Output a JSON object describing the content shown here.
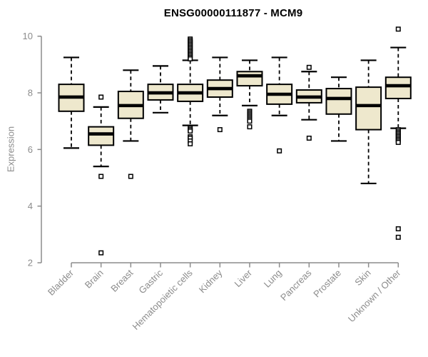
{
  "title": "ENSG00000111877 - MCM9",
  "chart_data": {
    "type": "boxplot",
    "title": "ENSG00000111877 - MCM9",
    "ylabel": "Expression",
    "xlabel": "",
    "ylim": [
      2,
      10
    ],
    "yticks": [
      2,
      4,
      6,
      8,
      10
    ],
    "grid": false,
    "legend": "none",
    "categories": [
      "Bladder",
      "Brain",
      "Breast",
      "Gastric",
      "Hematopoietic cells",
      "Kidney",
      "Liver",
      "Lung",
      "Pancreas",
      "Prostate",
      "Skin",
      "Unknown / Other"
    ],
    "series": [
      {
        "name": "Bladder",
        "low": 6.05,
        "q1": 7.35,
        "median": 7.85,
        "q3": 8.3,
        "high": 9.25,
        "outliers": []
      },
      {
        "name": "Brain",
        "low": 5.4,
        "q1": 6.15,
        "median": 6.55,
        "q3": 6.8,
        "high": 7.5,
        "outliers": [
          7.85,
          5.05,
          2.35
        ]
      },
      {
        "name": "Breast",
        "low": 6.3,
        "q1": 7.1,
        "median": 7.55,
        "q3": 8.05,
        "high": 8.8,
        "outliers": [
          5.05
        ]
      },
      {
        "name": "Gastric",
        "low": 7.3,
        "q1": 7.75,
        "median": 8.0,
        "q3": 8.3,
        "high": 8.95,
        "outliers": []
      },
      {
        "name": "Hematopoietic cells",
        "low": 6.85,
        "q1": 7.7,
        "median": 8.0,
        "q3": 8.3,
        "high": 9.15,
        "outliers": [
          9.9,
          9.85,
          9.8,
          9.75,
          9.7,
          9.65,
          9.6,
          9.55,
          9.5,
          9.45,
          9.4,
          9.35,
          9.3,
          9.25,
          9.2,
          6.75,
          6.7,
          6.65,
          6.45,
          6.4,
          6.3,
          6.2
        ]
      },
      {
        "name": "Kidney",
        "low": 7.2,
        "q1": 7.85,
        "median": 8.15,
        "q3": 8.45,
        "high": 9.25,
        "outliers": [
          6.7
        ]
      },
      {
        "name": "Liver",
        "low": 7.55,
        "q1": 8.25,
        "median": 8.6,
        "q3": 8.75,
        "high": 9.15,
        "outliers": [
          7.35,
          7.3,
          7.25,
          7.2,
          7.15,
          7.1,
          7.05,
          7.0,
          6.8
        ]
      },
      {
        "name": "Lung",
        "low": 7.2,
        "q1": 7.6,
        "median": 7.95,
        "q3": 8.3,
        "high": 9.25,
        "outliers": [
          5.95
        ]
      },
      {
        "name": "Pancreas",
        "low": 7.05,
        "q1": 7.65,
        "median": 7.85,
        "q3": 8.1,
        "high": 8.75,
        "outliers": [
          8.9,
          6.4
        ]
      },
      {
        "name": "Prostate",
        "low": 6.3,
        "q1": 7.25,
        "median": 7.8,
        "q3": 8.15,
        "high": 8.55,
        "outliers": []
      },
      {
        "name": "Skin",
        "low": 4.8,
        "q1": 6.7,
        "median": 7.55,
        "q3": 8.2,
        "high": 9.15,
        "outliers": []
      },
      {
        "name": "Unknown / Other",
        "low": 6.75,
        "q1": 7.8,
        "median": 8.25,
        "q3": 8.55,
        "high": 9.6,
        "outliers": [
          10.25,
          6.7,
          6.65,
          6.6,
          6.55,
          6.5,
          6.45,
          6.4,
          6.35,
          6.3,
          6.25,
          3.2,
          2.9
        ]
      }
    ],
    "colors": {
      "box_fill": "#EEE8CD",
      "box_border": "#000000",
      "median": "#000000",
      "whisker": "#000000",
      "outlier_fill": "#FFFFFF",
      "axis": "#8C8C8C",
      "title": "#000000",
      "background": "#FFFFFF"
    }
  }
}
